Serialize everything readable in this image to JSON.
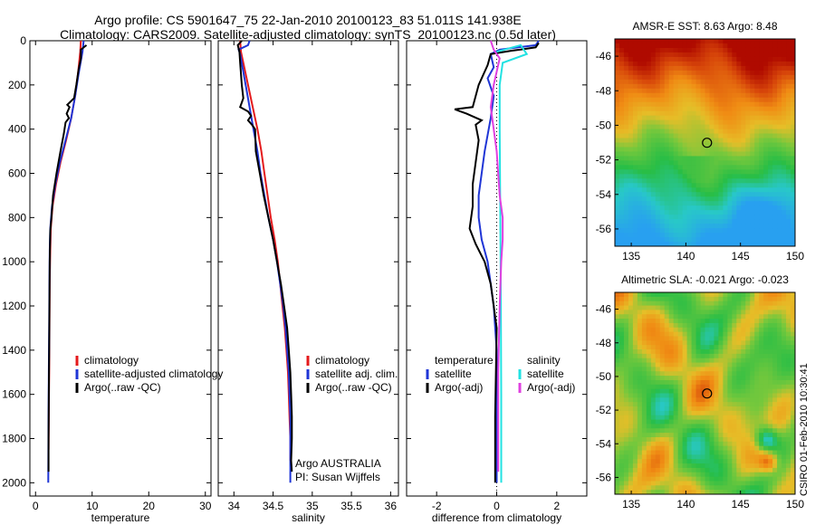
{
  "header": {
    "title_line1": "Argo profile: CS 5901647_75 22-Jan-2010 20100123_83 51.011S 141.938E",
    "title_line2": "Climatology: CARS2009. Satellite-adjusted climatology: synTS_20100123.nc (0.5d later)"
  },
  "credit": "CSIRO 01-Feb-2010 10:30:41",
  "colors": {
    "climatology": "#e41a1c",
    "satellite": "#1f35d6",
    "argo": "#000000",
    "satellite_salinity": "#22e2e2",
    "argo_salinity": "#e040e0"
  },
  "chart_data": [
    {
      "type": "line",
      "xlabel": "temperature",
      "ylabel": "",
      "xlim": [
        -1,
        31
      ],
      "ylim": [
        2060,
        0
      ],
      "xticks": [
        0,
        10,
        20,
        30
      ],
      "yticks": [
        0,
        200,
        400,
        600,
        800,
        1000,
        1200,
        1400,
        1600,
        1800,
        2000
      ],
      "legend": [
        "climatology",
        "satellite-adjusted climatology",
        "Argo(..raw -QC)"
      ],
      "series": [
        {
          "name": "climatology",
          "color": "#e41a1c",
          "points": [
            [
              8.0,
              0
            ],
            [
              7.9,
              50
            ],
            [
              7.5,
              150
            ],
            [
              7.0,
              250
            ],
            [
              6.3,
              350
            ],
            [
              5.4,
              450
            ],
            [
              4.4,
              550
            ],
            [
              3.6,
              650
            ],
            [
              3.0,
              750
            ],
            [
              2.7,
              850
            ],
            [
              2.6,
              950
            ],
            [
              2.5,
              1100
            ],
            [
              2.45,
              1300
            ],
            [
              2.4,
              1500
            ],
            [
              2.35,
              1700
            ],
            [
              2.3,
              1850
            ]
          ]
        },
        {
          "name": "satellite-adjusted climatology",
          "color": "#1f35d6",
          "points": [
            [
              8.5,
              0
            ],
            [
              8.3,
              50
            ],
            [
              7.6,
              150
            ],
            [
              7.0,
              250
            ],
            [
              6.3,
              350
            ],
            [
              5.3,
              450
            ],
            [
              4.3,
              550
            ],
            [
              3.5,
              650
            ],
            [
              2.9,
              750
            ],
            [
              2.6,
              850
            ],
            [
              2.5,
              950
            ],
            [
              2.45,
              1100
            ],
            [
              2.4,
              1300
            ],
            [
              2.35,
              1500
            ],
            [
              2.3,
              1700
            ],
            [
              2.25,
              2000
            ]
          ]
        },
        {
          "name": "Argo(..raw -QC)",
          "color": "#000000",
          "points": [
            [
              9.0,
              20
            ],
            [
              8.0,
              40
            ],
            [
              8.0,
              80
            ],
            [
              7.6,
              130
            ],
            [
              7.2,
              200
            ],
            [
              6.8,
              260
            ],
            [
              5.6,
              290
            ],
            [
              6.0,
              300
            ],
            [
              5.5,
              330
            ],
            [
              5.9,
              350
            ],
            [
              5.3,
              370
            ],
            [
              5.0,
              420
            ],
            [
              4.4,
              500
            ],
            [
              3.7,
              600
            ],
            [
              3.1,
              700
            ],
            [
              2.8,
              800
            ],
            [
              2.6,
              860
            ],
            [
              2.5,
              1000
            ],
            [
              2.45,
              1200
            ],
            [
              2.4,
              1400
            ],
            [
              2.35,
              1600
            ],
            [
              2.3,
              1800
            ],
            [
              2.3,
              1950
            ]
          ]
        }
      ]
    },
    {
      "type": "line",
      "xlabel": "salinity",
      "ylabel": "",
      "xlim": [
        33.8,
        36.1
      ],
      "ylim": [
        2060,
        0
      ],
      "xticks": [
        34,
        34.5,
        35,
        35.5,
        36
      ],
      "legend": [
        "climatology",
        "satellite adj. clim.",
        "Argo(..raw -QC)"
      ],
      "annotations": [
        "Argo AUSTRALIA",
        "PI: Susan Wijffels"
      ],
      "series": [
        {
          "name": "climatology",
          "color": "#e41a1c",
          "points": [
            [
              34.08,
              0
            ],
            [
              34.09,
              50
            ],
            [
              34.12,
              100
            ],
            [
              34.18,
              200
            ],
            [
              34.24,
              300
            ],
            [
              34.3,
              400
            ],
            [
              34.35,
              500
            ],
            [
              34.39,
              600
            ],
            [
              34.43,
              700
            ],
            [
              34.47,
              800
            ],
            [
              34.52,
              900
            ],
            [
              34.56,
              1000
            ],
            [
              34.59,
              1100
            ],
            [
              34.62,
              1200
            ],
            [
              34.65,
              1300
            ],
            [
              34.67,
              1400
            ],
            [
              34.69,
              1500
            ],
            [
              34.7,
              1600
            ],
            [
              34.71,
              1700
            ],
            [
              34.72,
              1800
            ],
            [
              34.72,
              1900
            ]
          ]
        },
        {
          "name": "satellite adj. clim.",
          "color": "#1f35d6",
          "points": [
            [
              34.2,
              0
            ],
            [
              34.18,
              20
            ],
            [
              34.06,
              40
            ],
            [
              34.08,
              60
            ],
            [
              34.11,
              120
            ],
            [
              34.15,
              200
            ],
            [
              34.2,
              300
            ],
            [
              34.25,
              400
            ],
            [
              34.3,
              500
            ],
            [
              34.34,
              600
            ],
            [
              34.39,
              700
            ],
            [
              34.44,
              800
            ],
            [
              34.5,
              900
            ],
            [
              34.55,
              1000
            ],
            [
              34.59,
              1100
            ],
            [
              34.63,
              1200
            ],
            [
              34.66,
              1300
            ],
            [
              34.68,
              1400
            ],
            [
              34.7,
              1500
            ],
            [
              34.71,
              1600
            ],
            [
              34.72,
              1700
            ],
            [
              34.72,
              1800
            ],
            [
              34.72,
              2000
            ]
          ]
        },
        {
          "name": "Argo(..raw -QC)",
          "color": "#000000",
          "points": [
            [
              34.1,
              0
            ],
            [
              34.05,
              20
            ],
            [
              34.07,
              50
            ],
            [
              34.08,
              100
            ],
            [
              34.1,
              200
            ],
            [
              34.12,
              260
            ],
            [
              34.08,
              300
            ],
            [
              34.18,
              320
            ],
            [
              34.22,
              340
            ],
            [
              34.18,
              360
            ],
            [
              34.23,
              380
            ],
            [
              34.27,
              400
            ],
            [
              34.28,
              500
            ],
            [
              34.33,
              600
            ],
            [
              34.38,
              700
            ],
            [
              34.44,
              800
            ],
            [
              34.5,
              900
            ],
            [
              34.55,
              1000
            ],
            [
              34.6,
              1100
            ],
            [
              34.64,
              1200
            ],
            [
              34.68,
              1300
            ],
            [
              34.7,
              1400
            ],
            [
              34.72,
              1500
            ],
            [
              34.73,
              1600
            ],
            [
              34.74,
              1700
            ],
            [
              34.74,
              1800
            ],
            [
              34.73,
              1900
            ],
            [
              34.74,
              1950
            ]
          ]
        }
      ]
    },
    {
      "type": "line",
      "xlabel": "difference from climatology",
      "ylabel": "",
      "xlim": [
        -3,
        3
      ],
      "ylim": [
        2060,
        0
      ],
      "xticks": [
        -2,
        0,
        2
      ],
      "zero_line": 0,
      "legend_groups": [
        {
          "heading": "temperature",
          "entries": [
            "satellite",
            "Argo(-adj)"
          ]
        },
        {
          "heading": "salinity",
          "entries": [
            "satellite",
            "Argo(-adj)"
          ]
        }
      ],
      "series": [
        {
          "name": "temperature satellite",
          "color": "#1f35d6",
          "points": [
            [
              1.4,
              0
            ],
            [
              1.3,
              20
            ],
            [
              0.1,
              40
            ],
            [
              -0.2,
              60
            ],
            [
              -0.1,
              120
            ],
            [
              -0.3,
              170
            ],
            [
              -0.1,
              250
            ],
            [
              -0.2,
              350
            ],
            [
              -0.4,
              500
            ],
            [
              -0.5,
              600
            ],
            [
              -0.6,
              700
            ],
            [
              -0.6,
              800
            ],
            [
              -0.5,
              900
            ],
            [
              -0.3,
              1000
            ],
            [
              -0.1,
              1200
            ],
            [
              0.0,
              1400
            ],
            [
              0.0,
              1700
            ],
            [
              0.0,
              2000
            ]
          ]
        },
        {
          "name": "temperature Argo(-adj)",
          "color": "#000000",
          "points": [
            [
              1.4,
              10
            ],
            [
              1.3,
              30
            ],
            [
              0.8,
              40
            ],
            [
              0.5,
              45
            ],
            [
              -0.2,
              60
            ],
            [
              -0.3,
              110
            ],
            [
              -0.6,
              200
            ],
            [
              -0.8,
              300
            ],
            [
              -1.4,
              310
            ],
            [
              -1.0,
              330
            ],
            [
              -0.5,
              360
            ],
            [
              -0.7,
              380
            ],
            [
              -0.6,
              450
            ],
            [
              -0.7,
              550
            ],
            [
              -0.8,
              650
            ],
            [
              -0.8,
              750
            ],
            [
              -0.9,
              850
            ],
            [
              -0.7,
              920
            ],
            [
              -0.4,
              1000
            ],
            [
              -0.2,
              1100
            ],
            [
              0.0,
              1300
            ],
            [
              -0.05,
              1700
            ],
            [
              -0.05,
              2000
            ]
          ]
        },
        {
          "name": "salinity satellite",
          "color": "#22e2e2",
          "points": [
            [
              0.0,
              50
            ],
            [
              0.8,
              20
            ],
            [
              1.0,
              60
            ],
            [
              0.2,
              100
            ],
            [
              0.1,
              200
            ],
            [
              0.1,
              400
            ],
            [
              0.12,
              800
            ],
            [
              0.14,
              1200
            ],
            [
              0.15,
              1600
            ],
            [
              0.15,
              2000
            ]
          ]
        },
        {
          "name": "salinity Argo(-adj)",
          "color": "#e040e0",
          "points": [
            [
              -0.2,
              0
            ],
            [
              -0.1,
              40
            ],
            [
              0.1,
              80
            ],
            [
              -0.1,
              200
            ],
            [
              -0.2,
              300
            ],
            [
              -0.1,
              400
            ],
            [
              0.0,
              500
            ],
            [
              0.1,
              700
            ],
            [
              0.2,
              800
            ],
            [
              0.2,
              900
            ],
            [
              0.15,
              1000
            ],
            [
              0.1,
              1200
            ],
            [
              0.05,
              1500
            ],
            [
              0.05,
              1800
            ],
            [
              0.05,
              1950
            ]
          ]
        }
      ]
    },
    {
      "type": "heatmap",
      "title": "AMSR-E SST: 8.63 Argo: 8.48",
      "xlim": [
        133.5,
        150
      ],
      "ylim": [
        -57,
        -45
      ],
      "xticks": [
        135,
        140,
        145,
        150
      ],
      "yticks": [
        -46,
        -48,
        -50,
        -52,
        -54,
        -56
      ],
      "marker": {
        "lon": 141.938,
        "lat": -51.011
      }
    },
    {
      "type": "heatmap",
      "title": "Altimetric SLA: -0.021 Argo: -0.023",
      "xlim": [
        133.5,
        150
      ],
      "ylim": [
        -57,
        -45
      ],
      "xticks": [
        135,
        140,
        145,
        150
      ],
      "yticks": [
        -46,
        -48,
        -50,
        -52,
        -54,
        -56
      ],
      "marker": {
        "lon": 141.938,
        "lat": -51.011
      }
    }
  ]
}
